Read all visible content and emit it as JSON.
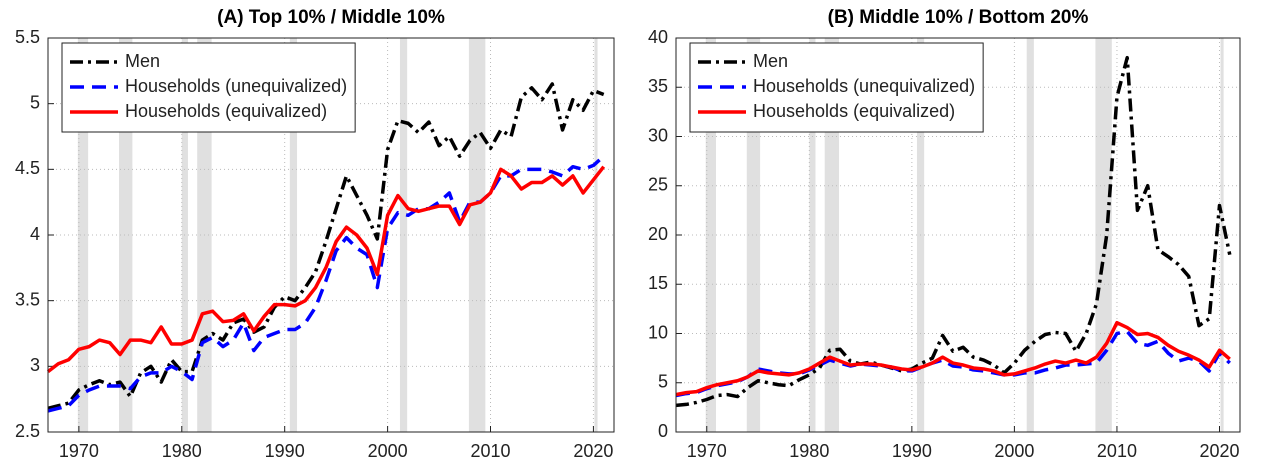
{
  "chart_data": [
    {
      "type": "line",
      "title": "(A) Top 10% / Middle 10%",
      "x": [
        1967,
        1968,
        1969,
        1970,
        1971,
        1972,
        1973,
        1974,
        1975,
        1976,
        1977,
        1978,
        1979,
        1980,
        1981,
        1982,
        1983,
        1984,
        1985,
        1986,
        1987,
        1988,
        1989,
        1990,
        1991,
        1992,
        1993,
        1994,
        1995,
        1996,
        1997,
        1998,
        1999,
        2000,
        2001,
        2002,
        2003,
        2004,
        2005,
        2006,
        2007,
        2008,
        2009,
        2010,
        2011,
        2012,
        2013,
        2014,
        2015,
        2016,
        2017,
        2018,
        2019,
        2020,
        2021
      ],
      "series": [
        {
          "name": "Men",
          "color": "#000000",
          "style": "dashdot",
          "values": [
            2.68,
            2.7,
            2.72,
            2.82,
            2.86,
            2.89,
            2.86,
            2.88,
            2.77,
            2.95,
            3.0,
            2.88,
            3.05,
            2.96,
            2.96,
            3.2,
            3.25,
            3.2,
            3.33,
            3.36,
            3.26,
            3.3,
            3.45,
            3.53,
            3.5,
            3.6,
            3.72,
            3.95,
            4.2,
            4.45,
            4.3,
            4.15,
            3.97,
            4.65,
            4.87,
            4.85,
            4.78,
            4.86,
            4.68,
            4.75,
            4.6,
            4.72,
            4.78,
            4.66,
            4.8,
            4.75,
            5.05,
            5.12,
            5.03,
            5.15,
            4.8,
            5.03,
            4.95,
            5.1,
            5.07
          ]
        },
        {
          "name": "Households (unequivalized)",
          "color": "#0000ff",
          "style": "dashed",
          "values": [
            2.66,
            2.68,
            2.7,
            2.78,
            2.82,
            2.85,
            2.85,
            2.85,
            2.83,
            2.92,
            2.95,
            2.95,
            3.0,
            2.96,
            2.9,
            3.18,
            3.22,
            3.15,
            3.2,
            3.33,
            3.12,
            3.22,
            3.25,
            3.28,
            3.28,
            3.33,
            3.45,
            3.65,
            3.88,
            3.98,
            3.9,
            3.85,
            3.6,
            4.05,
            4.17,
            4.15,
            4.2,
            4.2,
            4.25,
            4.32,
            4.1,
            4.25,
            4.25,
            4.32,
            4.45,
            4.45,
            4.5,
            4.5,
            4.5,
            4.48,
            4.45,
            4.52,
            4.5,
            4.53,
            4.6
          ]
        },
        {
          "name": "Households (equivalized)",
          "color": "#ff0000",
          "style": "solid",
          "values": [
            2.96,
            3.02,
            3.05,
            3.13,
            3.15,
            3.2,
            3.18,
            3.09,
            3.2,
            3.2,
            3.18,
            3.3,
            3.17,
            3.17,
            3.2,
            3.4,
            3.42,
            3.34,
            3.35,
            3.4,
            3.27,
            3.38,
            3.47,
            3.47,
            3.46,
            3.5,
            3.6,
            3.75,
            3.95,
            4.06,
            4.0,
            3.9,
            3.7,
            4.15,
            4.3,
            4.2,
            4.18,
            4.2,
            4.22,
            4.22,
            4.08,
            4.23,
            4.25,
            4.32,
            4.5,
            4.45,
            4.35,
            4.4,
            4.4,
            4.45,
            4.38,
            4.45,
            4.32,
            4.42,
            4.52
          ]
        }
      ],
      "shaded_x_ranges": [
        [
          1969.9,
          1970.9
        ],
        [
          1973.9,
          1975.2
        ],
        [
          1980.0,
          1980.6
        ],
        [
          1981.5,
          1982.9
        ],
        [
          1990.5,
          1991.2
        ],
        [
          2001.2,
          2001.9
        ],
        [
          2007.9,
          2009.5
        ],
        [
          2020.1,
          2020.4
        ]
      ],
      "xlim": [
        1967,
        2022
      ],
      "xticks": [
        1970,
        1980,
        1990,
        2000,
        2010,
        2020
      ],
      "ylim": [
        2.5,
        5.5
      ],
      "yticks": [
        2.5,
        3,
        3.5,
        4,
        4.5,
        5,
        5.5
      ],
      "grid": true,
      "legend": "upper left"
    },
    {
      "type": "line",
      "title": "(B) Middle 10% / Bottom 20%",
      "x": [
        1967,
        1968,
        1969,
        1970,
        1971,
        1972,
        1973,
        1974,
        1975,
        1976,
        1977,
        1978,
        1979,
        1980,
        1981,
        1982,
        1983,
        1984,
        1985,
        1986,
        1987,
        1988,
        1989,
        1990,
        1991,
        1992,
        1993,
        1994,
        1995,
        1996,
        1997,
        1998,
        1999,
        2000,
        2001,
        2002,
        2003,
        2004,
        2005,
        2006,
        2007,
        2008,
        2009,
        2010,
        2011,
        2012,
        2013,
        2014,
        2015,
        2016,
        2017,
        2018,
        2019,
        2020,
        2021
      ],
      "series": [
        {
          "name": "Men",
          "color": "#000000",
          "style": "dashdot",
          "values": [
            2.7,
            2.8,
            3.0,
            3.3,
            3.7,
            3.8,
            3.6,
            4.5,
            5.2,
            5.0,
            4.8,
            4.7,
            5.3,
            5.8,
            6.5,
            8.3,
            8.4,
            7.2,
            6.9,
            7.1,
            6.8,
            6.5,
            6.2,
            6.4,
            7.0,
            7.5,
            9.8,
            8.2,
            8.6,
            7.6,
            7.3,
            6.8,
            6.0,
            7.0,
            8.3,
            9.2,
            9.9,
            10.1,
            10.0,
            8.2,
            10.0,
            13.0,
            20.0,
            34.0,
            38.0,
            22.5,
            25.0,
            18.5,
            17.8,
            17.0,
            15.8,
            10.8,
            11.5,
            23.0,
            18.0
          ]
        },
        {
          "name": "Households (unequivalized)",
          "color": "#0000ff",
          "style": "dashed",
          "values": [
            3.7,
            3.9,
            4.0,
            4.4,
            4.7,
            4.9,
            5.1,
            5.6,
            6.4,
            6.2,
            6.0,
            5.9,
            5.9,
            6.3,
            6.8,
            7.3,
            7.0,
            6.7,
            6.9,
            6.8,
            6.7,
            6.6,
            6.2,
            6.2,
            6.6,
            7.0,
            7.3,
            6.7,
            6.6,
            6.3,
            6.2,
            6.0,
            5.8,
            5.8,
            6.0,
            6.0,
            6.3,
            6.5,
            6.8,
            6.8,
            6.9,
            7.0,
            8.3,
            10.0,
            10.2,
            9.0,
            8.8,
            9.2,
            8.0,
            7.2,
            7.5,
            7.2,
            6.2,
            8.0,
            7.0
          ]
        },
        {
          "name": "Households (equivalized)",
          "color": "#ff0000",
          "style": "solid",
          "values": [
            3.8,
            4.0,
            4.1,
            4.5,
            4.8,
            5.0,
            5.2,
            5.6,
            6.2,
            6.0,
            5.9,
            5.8,
            6.0,
            6.4,
            7.0,
            7.6,
            7.2,
            6.8,
            6.9,
            6.9,
            6.8,
            6.6,
            6.4,
            6.3,
            6.6,
            7.0,
            7.6,
            7.0,
            6.8,
            6.5,
            6.4,
            6.2,
            5.8,
            5.9,
            6.2,
            6.5,
            6.9,
            7.2,
            7.0,
            7.3,
            7.0,
            7.6,
            9.0,
            11.1,
            10.6,
            9.9,
            10.0,
            9.6,
            8.8,
            8.2,
            7.8,
            7.3,
            6.6,
            8.3,
            7.4
          ]
        }
      ],
      "shaded_x_ranges": [
        [
          1969.9,
          1970.9
        ],
        [
          1973.9,
          1975.2
        ],
        [
          1980.0,
          1980.6
        ],
        [
          1981.5,
          1982.9
        ],
        [
          1990.5,
          1991.2
        ],
        [
          2001.2,
          2001.9
        ],
        [
          2007.9,
          2009.5
        ],
        [
          2020.1,
          2020.4
        ]
      ],
      "xlim": [
        1967,
        2022
      ],
      "xticks": [
        1970,
        1980,
        1990,
        2000,
        2010,
        2020
      ],
      "ylim": [
        0,
        40
      ],
      "yticks": [
        0,
        5,
        10,
        15,
        20,
        25,
        30,
        35,
        40
      ],
      "grid": true,
      "legend": "upper left"
    }
  ]
}
